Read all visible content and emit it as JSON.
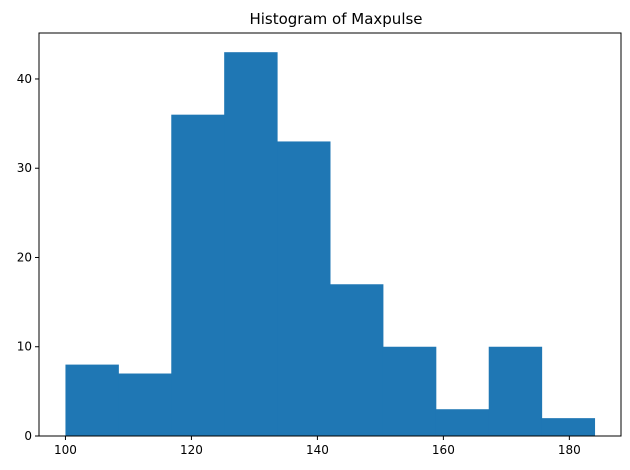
{
  "chart_data": {
    "type": "bar",
    "title": "Histogram of Maxpulse",
    "xlabel": "",
    "ylabel": "",
    "bin_edges": [
      100.0,
      108.4,
      116.8,
      125.2,
      133.6,
      142.0,
      150.4,
      158.8,
      167.2,
      175.6,
      184.0
    ],
    "values": [
      8,
      7,
      36,
      43,
      33,
      17,
      10,
      3,
      10,
      2
    ],
    "xlim": [
      95.8,
      188.2
    ],
    "ylim": [
      0,
      45.15
    ],
    "x_ticks": [
      100,
      120,
      140,
      160,
      180
    ],
    "y_ticks": [
      0,
      10,
      20,
      30,
      40
    ],
    "bar_color": "#1f77b4",
    "grid": false,
    "legend": "none"
  }
}
